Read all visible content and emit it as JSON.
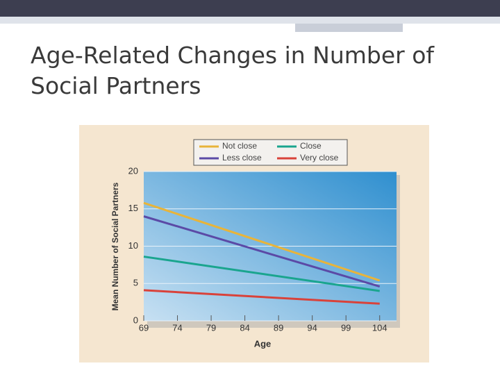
{
  "chart_data": {
    "type": "line",
    "title": "Age-Related Changes in Number of Social Partners",
    "x_label": "Age",
    "y_label": "Mean Number of Social Partners",
    "x": [
      69,
      104
    ],
    "series": [
      {
        "name": "Not close",
        "color": "#e8b43a",
        "values": [
          15.8,
          5.4
        ]
      },
      {
        "name": "Less close",
        "color": "#5b4aa6",
        "values": [
          14.0,
          4.6
        ]
      },
      {
        "name": "Close",
        "color": "#1aa58e",
        "values": [
          8.6,
          4.0
        ]
      },
      {
        "name": "Very close",
        "color": "#d9423a",
        "values": [
          4.1,
          2.3
        ]
      }
    ],
    "xlim": [
      69,
      106.5
    ],
    "xticks": [
      69,
      74,
      79,
      84,
      89,
      94,
      99,
      104
    ],
    "ylim": [
      0,
      20
    ],
    "yticks": [
      0,
      5,
      10,
      15,
      20
    ],
    "grid": true,
    "legend": "top"
  }
}
